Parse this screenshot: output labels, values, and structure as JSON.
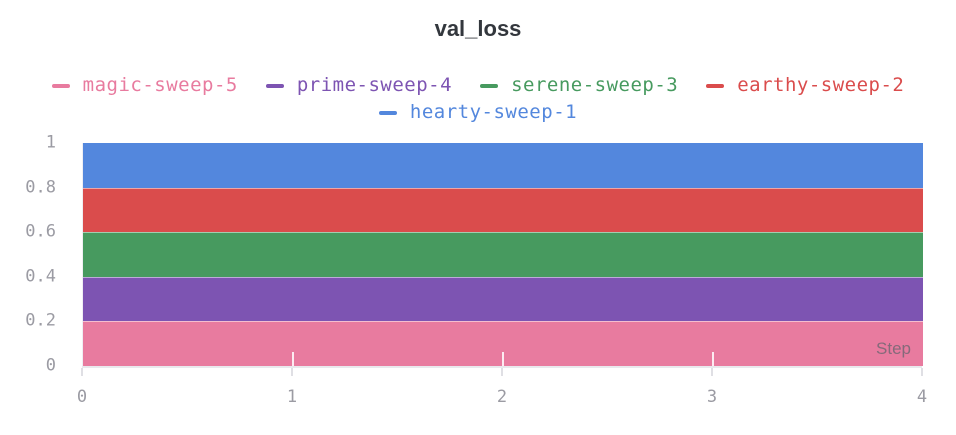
{
  "panel": {
    "title": "val_loss"
  },
  "legend": {
    "rows": [
      [
        "magic-sweep-5",
        "prime-sweep-4",
        "serene-sweep-3",
        "earthy-sweep-2"
      ],
      [
        "hearty-sweep-1"
      ]
    ]
  },
  "chart_data": {
    "type": "area",
    "title": "val_loss",
    "xlabel": "Step",
    "ylabel": "",
    "xlim": [
      0,
      4
    ],
    "ylim": [
      0,
      1
    ],
    "x_ticks": [
      0,
      1,
      2,
      3,
      4
    ],
    "y_ticks": [
      0,
      0.2,
      0.4,
      0.6,
      0.8,
      1
    ],
    "x": [
      0,
      1,
      2,
      3,
      4
    ],
    "legend_position": "top",
    "grid": false,
    "fill": "opaque-area-to-zero",
    "series": [
      {
        "name": "hearty-sweep-1",
        "color": "#5387DD",
        "values": [
          1.0,
          1.0,
          1.0,
          1.0,
          1.0
        ],
        "visible_band": [
          0.8,
          1.0
        ]
      },
      {
        "name": "earthy-sweep-2",
        "color": "#DA4C4C",
        "values": [
          0.8,
          0.8,
          0.8,
          0.8,
          0.8
        ],
        "visible_band": [
          0.6,
          0.8
        ]
      },
      {
        "name": "serene-sweep-3",
        "color": "#479A5F",
        "values": [
          0.6,
          0.6,
          0.6,
          0.6,
          0.6
        ],
        "visible_band": [
          0.4,
          0.6
        ]
      },
      {
        "name": "prime-sweep-4",
        "color": "#7D54B2",
        "values": [
          0.4,
          0.4,
          0.4,
          0.4,
          0.4
        ],
        "visible_band": [
          0.2,
          0.4
        ]
      },
      {
        "name": "magic-sweep-5",
        "color": "#E87B9F",
        "values": [
          0.2,
          0.2,
          0.2,
          0.2,
          0.2
        ],
        "visible_band": [
          0.0,
          0.2
        ]
      }
    ]
  },
  "colors": {
    "background": "#FFFFFF",
    "title_text": "#33373D",
    "axis_tick_text": "#9B9BA3",
    "axis_line": "#E9E9ED",
    "tick_below_axis": "#DFDFE4",
    "tick_inside_plot": "#FFFFFF",
    "step_label_text": "#8E8E96"
  }
}
